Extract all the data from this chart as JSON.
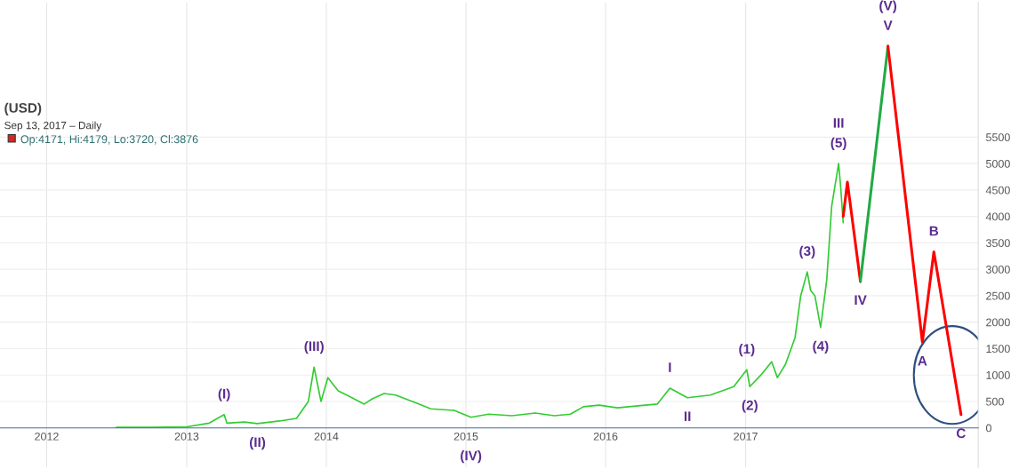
{
  "chart_data": {
    "type": "line",
    "title": "(USD)",
    "annotations": [
      "Sep 13, 2017 – Daily",
      "Op:4171, Hi:4179, Lo:3720, Cl:3876",
      {
        "text": "(I)",
        "x": "2013-04-09",
        "y": 250
      },
      {
        "text": "(II)",
        "x": "2013-07-05",
        "y": 80
      },
      {
        "text": "(III)",
        "x": "2013-11-30",
        "y": 1150
      },
      {
        "text": "(IV)",
        "x": "2015-01-14",
        "y": 200
      },
      {
        "text": "V",
        "x": "2018-01-08",
        "y": 7220
      },
      {
        "text": "(V)",
        "x": "2018-01-08",
        "y": 7220
      },
      {
        "text": "I",
        "x": "2016-06-17",
        "y": 750
      },
      {
        "text": "II",
        "x": "2016-08-02",
        "y": 570
      },
      {
        "text": "(5)",
        "x": "2017-09-01",
        "y": 5000
      },
      {
        "text": "III",
        "x": "2017-09-01",
        "y": 5000
      },
      {
        "text": "IV",
        "x": "2017-10-28",
        "y": 2770
      },
      {
        "text": "(1)",
        "x": "2017-01-04",
        "y": 1100
      },
      {
        "text": "(2)",
        "x": "2017-01-12",
        "y": 780
      },
      {
        "text": "(3)",
        "x": "2017-06-11",
        "y": 2950
      },
      {
        "text": "(4)",
        "x": "2017-07-16",
        "y": 1900
      },
      {
        "text": "A",
        "x": "2018-04-08",
        "y": 1620
      },
      {
        "text": "B",
        "x": "2018-05-08",
        "y": 3330
      },
      {
        "text": "C",
        "x": "2018-07-18",
        "y": 250
      }
    ],
    "series": [
      {
        "color": "#33cc33",
        "x": [
          "2012-07-01",
          "2012-10-01",
          "2013-01-01",
          "2013-03-01",
          "2013-04-09",
          "2013-04-16",
          "2013-06-01",
          "2013-07-05",
          "2013-09-01",
          "2013-10-15",
          "2013-11-15",
          "2013-11-30",
          "2013-12-18",
          "2014-01-05",
          "2014-02-01",
          "2014-03-01",
          "2014-04-10",
          "2014-05-01",
          "2014-06-01",
          "2014-07-01",
          "2014-09-01",
          "2014-10-01",
          "2014-12-01",
          "2015-01-14",
          "2015-03-01",
          "2015-05-01",
          "2015-07-01",
          "2015-08-20",
          "2015-10-01",
          "2015-11-04",
          "2015-12-15",
          "2016-02-01",
          "2016-04-01",
          "2016-05-15",
          "2016-06-17",
          "2016-08-02",
          "2016-10-01",
          "2016-12-01",
          "2017-01-04",
          "2017-01-12",
          "2017-02-10",
          "2017-03-10",
          "2017-03-25",
          "2017-04-15",
          "2017-05-10",
          "2017-05-25",
          "2017-06-11",
          "2017-06-20",
          "2017-07-01",
          "2017-07-16",
          "2017-08-01",
          "2017-08-14",
          "2017-09-01",
          "2017-09-06",
          "2017-09-13"
        ],
        "values": [
          10,
          10,
          20,
          90,
          250,
          90,
          110,
          80,
          130,
          180,
          500,
          1150,
          500,
          950,
          700,
          600,
          450,
          550,
          650,
          620,
          450,
          360,
          330,
          200,
          260,
          230,
          280,
          230,
          260,
          400,
          430,
          380,
          420,
          450,
          750,
          570,
          620,
          780,
          1100,
          780,
          1000,
          1250,
          950,
          1200,
          1700,
          2500,
          2950,
          2600,
          2500,
          1900,
          2800,
          4200,
          5000,
          4600,
          3880
        ]
      },
      {
        "color": "#ff0000",
        "x": [
          "2017-09-13",
          "2017-09-24",
          "2017-10-28"
        ],
        "values": [
          4000,
          4650,
          2770
        ]
      },
      {
        "color": "#22aa44",
        "x": [
          "2017-10-28",
          "2018-01-08"
        ],
        "values": [
          2770,
          7220
        ]
      },
      {
        "color": "#ff0000",
        "x": [
          "2018-01-08",
          "2018-04-08",
          "2018-05-08",
          "2018-07-18"
        ],
        "values": [
          7220,
          1620,
          3330,
          250
        ]
      }
    ],
    "xlim": [
      "2011-09-01",
      "2018-09-01"
    ],
    "xticks": [
      {
        "value": "2012-01-01",
        "label": "2012"
      },
      {
        "value": "2013-01-01",
        "label": "2013"
      },
      {
        "value": "2014-01-01",
        "label": "2014"
      },
      {
        "value": "2015-01-01",
        "label": "2015"
      },
      {
        "value": "2016-01-01",
        "label": "2016"
      },
      {
        "value": "2017-01-01",
        "label": "2017"
      }
    ],
    "ylim": [
      -750,
      8050
    ],
    "yticks": [
      0,
      500,
      1000,
      1500,
      2000,
      2500,
      3000,
      3500,
      4000,
      4500,
      5000,
      5500
    ],
    "grid": true
  }
}
